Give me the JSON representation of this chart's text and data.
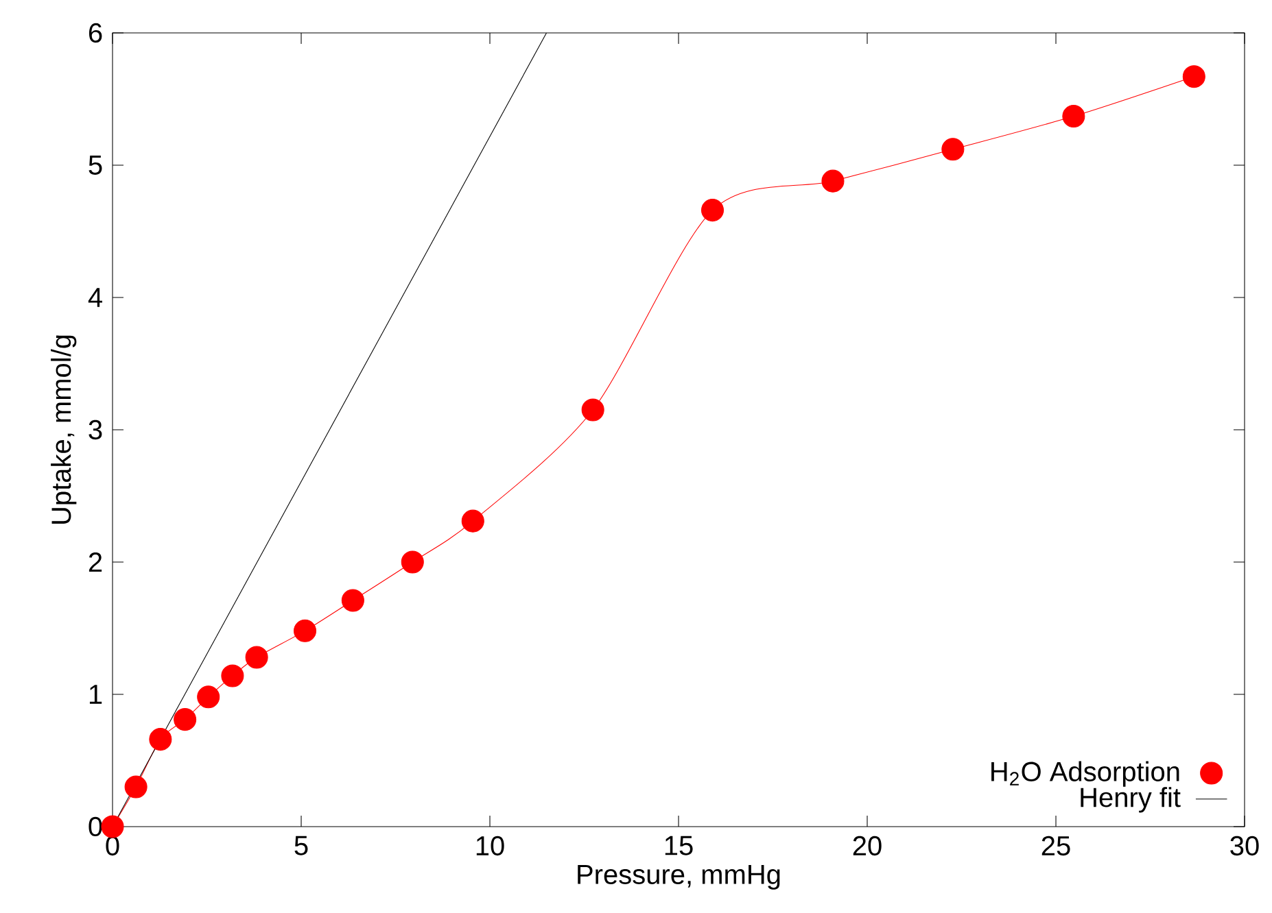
{
  "chart_data": {
    "type": "scatter",
    "xlabel": "Pressure, mmHg",
    "ylabel": "Uptake, mmol/g",
    "xlim": [
      0,
      30
    ],
    "ylim": [
      0,
      6
    ],
    "xticks": [
      0,
      5,
      10,
      15,
      20,
      25,
      30
    ],
    "yticks": [
      0,
      1,
      2,
      3,
      4,
      5,
      6
    ],
    "legend": "bottom right",
    "grid": false,
    "series": [
      {
        "name": "H$_{2}$O Adsorption",
        "marker": "circle",
        "color": "#ff0000",
        "x": [
          0,
          0.62,
          1.27,
          1.92,
          2.54,
          3.18,
          3.82,
          5.1,
          6.37,
          7.95,
          9.55,
          12.73,
          15.9,
          19.09,
          22.27,
          25.47,
          28.66
        ],
        "values": [
          0,
          0.3,
          0.66,
          0.81,
          0.98,
          1.14,
          1.28,
          1.48,
          1.71,
          2.0,
          2.31,
          3.15,
          4.66,
          4.88,
          5.12,
          5.37,
          5.67
        ]
      },
      {
        "type": "line",
        "marker": "none",
        "color": "#ff0000",
        "x": [
          0,
          0.62,
          1.27,
          1.92,
          2.54,
          3.18,
          3.82,
          5.1,
          6.37,
          7.95,
          9.55,
          12.73,
          15.9,
          19.09,
          22.27,
          25.47,
          28.66
        ],
        "values": [
          0,
          0.3,
          0.66,
          0.81,
          0.98,
          1.14,
          1.28,
          1.48,
          1.71,
          2.0,
          2.31,
          3.15,
          4.66,
          4.88,
          5.12,
          5.37,
          5.67
        ]
      },
      {
        "name": "Henry fit",
        "type": "line",
        "marker": "none",
        "color": "#000000",
        "x": [
          0,
          11.5
        ],
        "values": [
          0,
          6
        ]
      }
    ]
  }
}
